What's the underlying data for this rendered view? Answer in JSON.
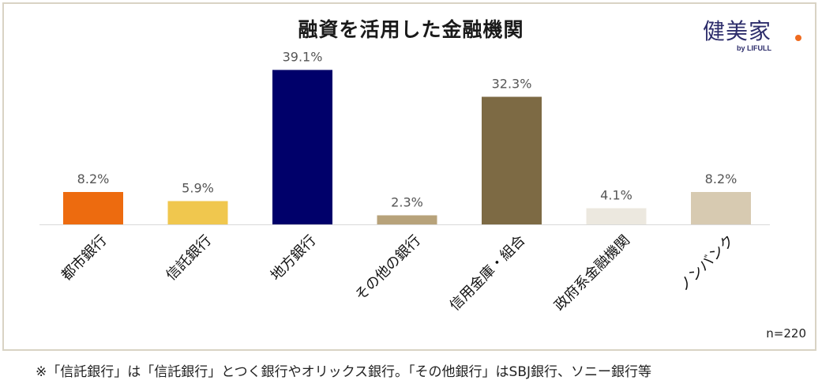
{
  "chart_data": {
    "type": "bar",
    "title": "融資を活用した金融機関",
    "categories": [
      "都市銀行",
      "信託銀行",
      "地方銀行",
      "その他の銀行",
      "信用金庫・組合",
      "政府系金融機関",
      "ノンバンク"
    ],
    "values": [
      8.2,
      5.9,
      39.1,
      2.3,
      32.3,
      4.1,
      8.2
    ],
    "value_labels": [
      "8.2%",
      "5.9%",
      "39.1%",
      "2.3%",
      "32.3%",
      "4.1%",
      "8.2%"
    ],
    "colors": [
      "#ed6b0f",
      "#f0c74e",
      "#00006a",
      "#b7a27a",
      "#7d6a44",
      "#ece8df",
      "#d7cab1"
    ],
    "ylim": [
      0,
      40
    ],
    "grid": false,
    "legend": "none",
    "xlabel": "",
    "ylabel": ""
  },
  "logo": {
    "main": "健美家",
    "sub": "by LIFULL"
  },
  "sample_note": "n=220",
  "footnote": "※「信託銀行」は「信託銀行」とつく銀行やオリックス銀行。「その他銀行」はSBJ銀行、ソニー銀行等"
}
